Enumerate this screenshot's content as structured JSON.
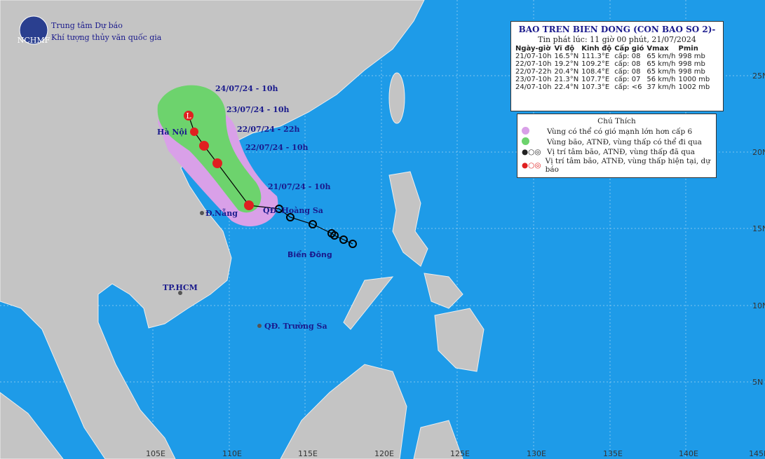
{
  "header": {
    "org_line1": "Trung tâm Dự báo",
    "org_line2": "Khí tượng thủy văn quốc gia",
    "logo": "NCHMF"
  },
  "bulletin": {
    "title": "BAO TREN BIEN DONG (CON BAO SO 2)-",
    "issued": "Tin phát lúc: 11 giờ 00 phút, 21/07/2024",
    "table": {
      "columns": [
        "Ngày-giờ",
        "Vĩ độ",
        "Kinh độ",
        "Cấp gió",
        "Vmax",
        "Pmin"
      ],
      "rows": [
        [
          "21/07-10h",
          "16.5°N",
          "111.3°E",
          "cấp: 08",
          "65 km/h",
          "998 mb"
        ],
        [
          "22/07-10h",
          "19.2°N",
          "109.2°E",
          "cấp: 08",
          "65 km/h",
          "998 mb"
        ],
        [
          "22/07-22h",
          "20.4°N",
          "108.4°E",
          "cấp: 08",
          "65 km/h",
          "998 mb"
        ],
        [
          "23/07-10h",
          "21.3°N",
          "107.7°E",
          "cấp: 07",
          "56 km/h",
          "1000 mb"
        ],
        [
          "24/07-10h",
          "22.4°N",
          "107.3°E",
          "cấp: <6",
          "37 km/h",
          "1002 mb"
        ]
      ]
    }
  },
  "legend": {
    "title": "Chú Thích",
    "items": [
      "Vùng có thể có gió mạnh lớn hơn cấp 6",
      "Vùng bão, ATNĐ, vùng thấp có thể đi qua",
      "Vị trí tâm bão, ATNĐ, vùng thấp đã qua",
      "Vị trí tâm bão, ATNĐ, vùng thấp hiện tại, dự báo"
    ]
  },
  "track_labels": [
    "24/07/24 - 10h",
    "23/07/24 - 10h",
    "22/07/24 - 22h",
    "22/07/24 - 10h",
    "21/07/24 - 10h"
  ],
  "places": {
    "hanoi": "Hà Nội",
    "danang": "Đ.Nẵng",
    "hoangsa": "QĐ. Hoàng Sa",
    "hcm": "TP.HCM",
    "truongsa": "QĐ. Trường Sa",
    "sea": "Biển Đông"
  },
  "lon_labels": [
    "105E",
    "110E",
    "115E",
    "120E",
    "125E",
    "130E",
    "135E",
    "140E",
    "145E"
  ],
  "lat_labels": [
    "25N",
    "20N",
    "15N",
    "10N",
    "5N"
  ]
}
